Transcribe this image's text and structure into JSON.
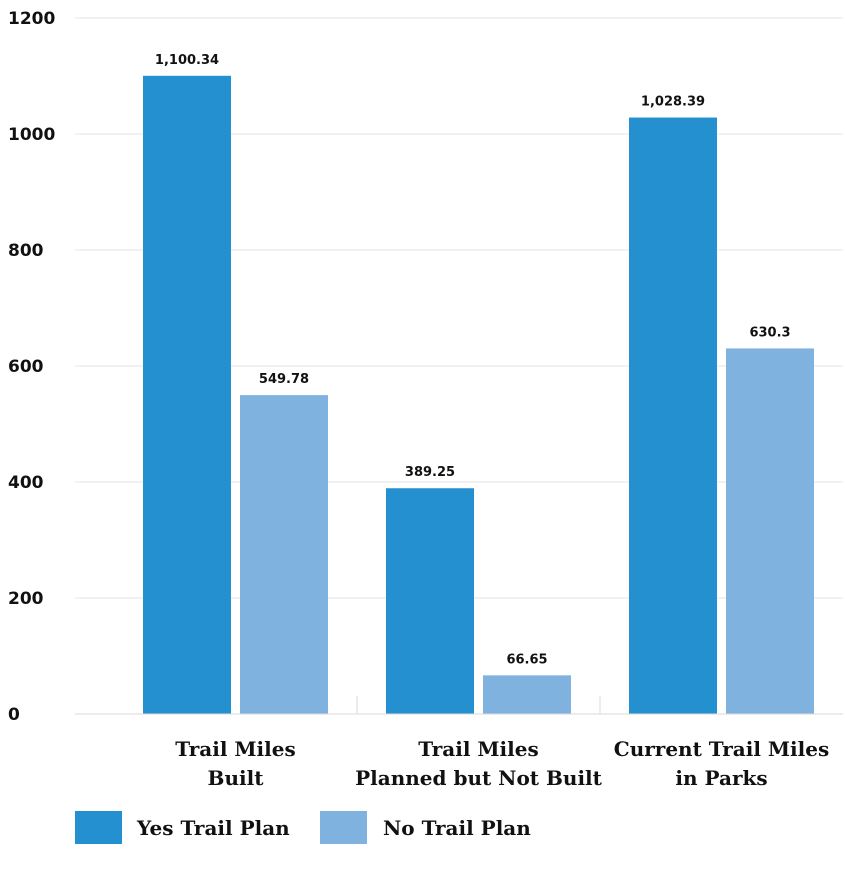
{
  "chart_data": {
    "type": "bar",
    "categories": [
      [
        "Trail Miles",
        "Built"
      ],
      [
        "Trail Miles",
        "Planned but Not Built"
      ],
      [
        "Current Trail Miles",
        "in Parks"
      ]
    ],
    "series": [
      {
        "name": "Yes Trail Plan",
        "color": "#2490d0",
        "values": [
          1100.34,
          389.25,
          1028.39
        ],
        "labels": [
          "1,100.34",
          "389.25",
          "1,028.39"
        ]
      },
      {
        "name": "No Trail Plan",
        "color": "#80b2e0",
        "values": [
          549.78,
          66.65,
          630.3
        ],
        "labels": [
          "549.78",
          "66.65",
          "630.3"
        ]
      }
    ],
    "ylim": [
      0,
      1200
    ],
    "yticks": [
      0,
      200,
      400,
      600,
      800,
      1000,
      1200
    ],
    "grid": true,
    "legend_position": "bottom"
  }
}
